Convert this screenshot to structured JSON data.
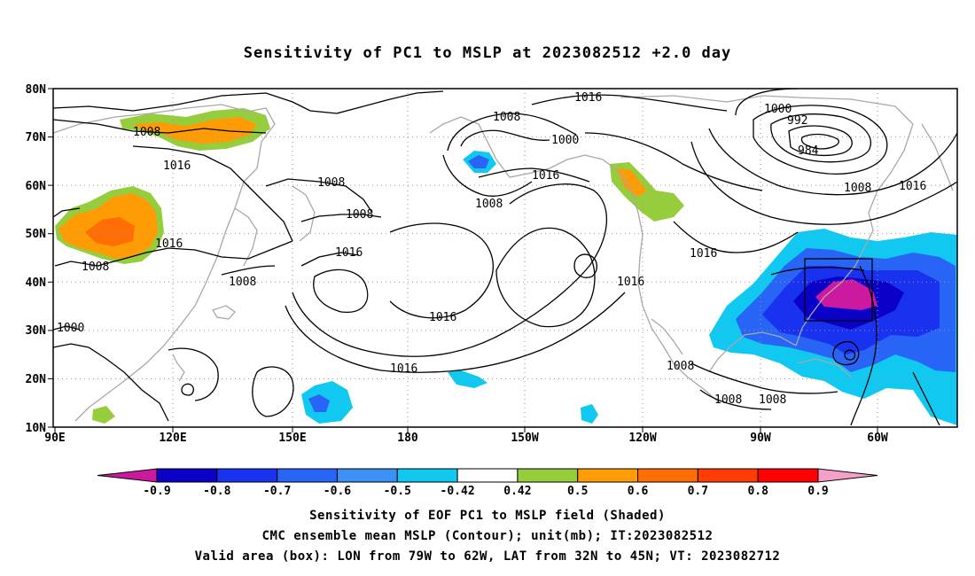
{
  "title": "Sensitivity of PC1 to MSLP at 2023082512 +2.0 day",
  "lat_labels": [
    "80N",
    "70N",
    "60N",
    "50N",
    "40N",
    "30N",
    "20N",
    "10N"
  ],
  "lon_labels": [
    "90E",
    "120E",
    "150E",
    "180",
    "150W",
    "120W",
    "90W",
    "60W"
  ],
  "colorbar": {
    "colors": [
      "#cc1aa0",
      "#0a00c8",
      "#1932f0",
      "#2864f5",
      "#3c91f5",
      "#10c8f0",
      "#ffffff",
      "#96cd3c",
      "#ff9b05",
      "#ff6e05",
      "#ff3c05",
      "#ff0000",
      "#f5a0c8"
    ],
    "labels": [
      "-0.9",
      "-0.8",
      "-0.7",
      "-0.6",
      "-0.5",
      "-0.42",
      "0.42",
      "0.5",
      "0.6",
      "0.7",
      "0.8",
      "0.9"
    ]
  },
  "contour_labels": [
    "1016",
    "1008",
    "1000",
    "1008",
    "1016",
    "1000",
    "992",
    "984",
    "1008",
    "1016",
    "1008",
    "1008",
    "1016",
    "1008",
    "1008",
    "1016",
    "1016",
    "1016",
    "1016",
    "1008",
    "1000",
    "1016",
    "1016",
    "1008",
    "1008",
    "1008"
  ],
  "valid_box": {
    "lon_min": "79W",
    "lon_max": "62W",
    "lat_min": "32N",
    "lat_max": "45N"
  },
  "captions": [
    "Sensitivity of EOF PC1 to MSLP field (Shaded)",
    "CMC ensemble mean MSLP (Contour); unit(mb); IT:2023082512",
    "Valid area (box): LON from 79W to 62W, LAT from 32N to 45N; VT: 2023082712"
  ]
}
